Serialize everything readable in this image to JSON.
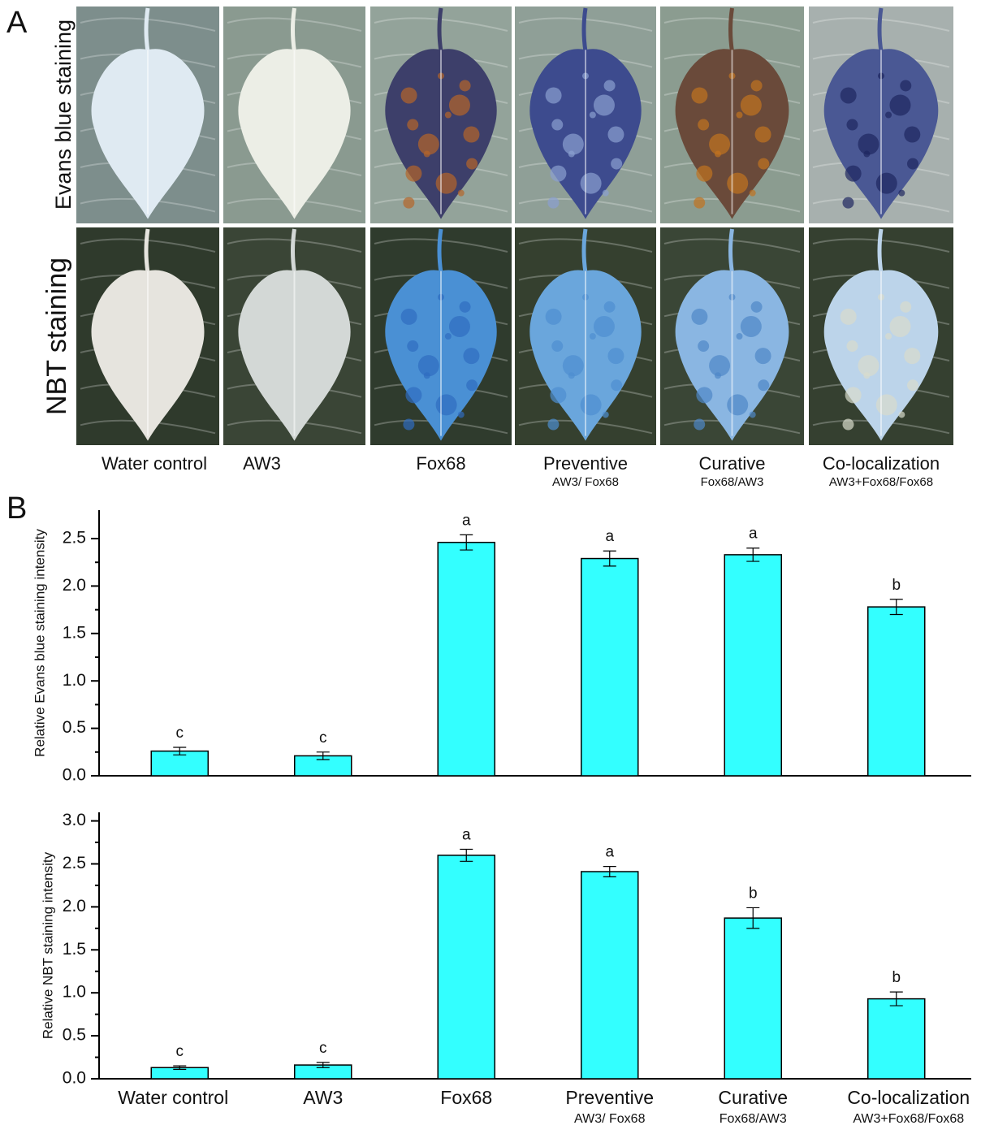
{
  "panel_a": {
    "label": "A",
    "rows": [
      "Evans  blue staining",
      "NBT staining"
    ],
    "columns": [
      {
        "name": "Water control",
        "sub": null
      },
      {
        "name": "AW3",
        "sub": null
      },
      {
        "name": "Fox68",
        "sub": null
      },
      {
        "name": "Preventive",
        "sub": "AW3/ Fox68"
      },
      {
        "name": "Curative",
        "sub": "Fox68/AW3"
      },
      {
        "name": "Co-localization",
        "sub": "AW3+Fox68/Fox68"
      }
    ]
  },
  "panel_b_label": "B",
  "chart_data": [
    {
      "type": "bar",
      "y_label": "Relative Evans blue staining intensity",
      "categories": [
        null,
        null,
        null,
        null,
        null,
        null
      ],
      "values": [
        0.26,
        0.21,
        2.46,
        2.29,
        2.33,
        1.78
      ],
      "errors": [
        0.04,
        0.04,
        0.08,
        0.08,
        0.07,
        0.08
      ],
      "letters": [
        "c",
        "c",
        "a",
        "a",
        "a",
        "b"
      ],
      "color": "#33ffff",
      "ylim": [
        0,
        2.8
      ],
      "yticks": [
        {
          "value": 0,
          "label": "0.0"
        },
        0.5,
        {
          "value": 1,
          "label": "1.0"
        },
        1.5,
        {
          "value": 2,
          "label": "2.0"
        },
        2.5
      ]
    },
    {
      "type": "bar",
      "y_label": "Relative NBT staining intensity",
      "categories": [
        "Water control",
        "AW3",
        "Fox68",
        "Preventive",
        "Curative",
        "Co-localization"
      ],
      "category_sublabels": [
        null,
        null,
        null,
        "AW3/ Fox68",
        "Fox68/AW3",
        "AW3+Fox68/Fox68"
      ],
      "values": [
        0.13,
        0.16,
        2.6,
        2.41,
        1.87,
        0.93
      ],
      "errors": [
        0.02,
        0.03,
        0.07,
        0.06,
        0.12,
        0.08
      ],
      "letters": [
        "c",
        "c",
        "a",
        "a",
        "b",
        "b"
      ],
      "color": "#33ffff",
      "ylim": [
        0,
        3.1
      ],
      "yticks": [
        {
          "value": 0,
          "label": "0.0"
        },
        0.5,
        {
          "value": 1,
          "label": "1.0"
        },
        1.5,
        {
          "value": 2,
          "label": "2.0"
        },
        2.5,
        {
          "value": 3,
          "label": "3.0"
        }
      ]
    }
  ]
}
